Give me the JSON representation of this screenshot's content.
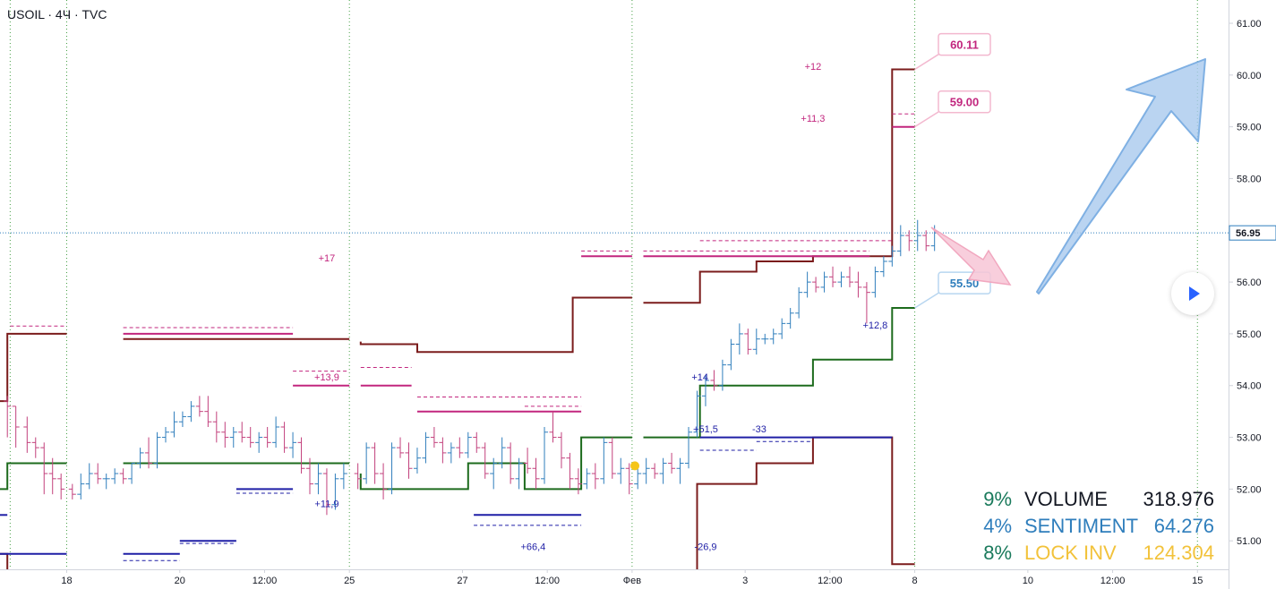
{
  "header": {
    "title": "USOIL · 4Ч · TVC"
  },
  "colors": {
    "bull": "#2f7ebc",
    "bear": "#c2407c",
    "maroon": "#7b1c1c",
    "green": "#1d6b1d",
    "navy": "#1f1fa6",
    "pink": "#c2267e",
    "grid": "#46a046",
    "axis": "#131722"
  },
  "chart_data": {
    "type": "ohlc",
    "y_ticks": [
      "51.00",
      "52.00",
      "53.00",
      "54.00",
      "55.00",
      "56.00",
      "57.00",
      "58.00",
      "59.00",
      "60.00",
      "61.00"
    ],
    "ylim": [
      50.45,
      61.45
    ],
    "x_ticks": [
      {
        "label": "18",
        "t": 1
      },
      {
        "label": "20",
        "t": 3
      },
      {
        "label": "12:00",
        "t": 4.5
      },
      {
        "label": "25",
        "t": 6
      },
      {
        "label": "27",
        "t": 8
      },
      {
        "label": "12:00",
        "t": 9.5
      },
      {
        "label": "Фев",
        "t": 11
      },
      {
        "label": "3",
        "t": 13
      },
      {
        "label": "12:00",
        "t": 14.5
      },
      {
        "label": "8",
        "t": 16
      },
      {
        "label": "10",
        "t": 18
      },
      {
        "label": "12:00",
        "t": 19.5
      },
      {
        "label": "15",
        "t": 21
      }
    ],
    "xlim": [
      -0.18,
      21.55
    ],
    "session_lines": [
      0,
      1,
      6,
      11,
      16,
      21
    ],
    "last_price": {
      "value": 56.95,
      "label": "56.95"
    },
    "candles": [
      [
        -0.05,
        53.7,
        53.8,
        53.0,
        53.6
      ],
      [
        0.1,
        53.6,
        53.6,
        52.8,
        53.2
      ],
      [
        0.3,
        53.2,
        53.4,
        52.7,
        52.9
      ],
      [
        0.45,
        52.9,
        53.0,
        52.6,
        52.8
      ],
      [
        0.6,
        52.8,
        52.9,
        51.9,
        52.3
      ],
      [
        0.75,
        52.3,
        52.6,
        51.9,
        52.2
      ],
      [
        0.9,
        52.2,
        52.3,
        51.8,
        52.0
      ],
      [
        1.1,
        52.0,
        52.1,
        51.8,
        51.9
      ],
      [
        1.25,
        51.9,
        52.3,
        51.8,
        52.1
      ],
      [
        1.4,
        52.1,
        52.5,
        52.0,
        52.3
      ],
      [
        1.55,
        52.3,
        52.5,
        52.1,
        52.2
      ],
      [
        1.7,
        52.2,
        52.3,
        52.0,
        52.2
      ],
      [
        1.85,
        52.2,
        52.4,
        52.1,
        52.3
      ],
      [
        2.0,
        52.3,
        52.4,
        52.1,
        52.2
      ],
      [
        2.15,
        52.2,
        52.5,
        52.1,
        52.5
      ],
      [
        2.3,
        52.5,
        52.8,
        52.4,
        52.7
      ],
      [
        2.45,
        52.7,
        53.0,
        52.4,
        52.5
      ],
      [
        2.6,
        52.5,
        53.1,
        52.4,
        53.0
      ],
      [
        2.75,
        53.0,
        53.2,
        52.9,
        53.1
      ],
      [
        2.9,
        53.1,
        53.5,
        53.0,
        53.3
      ],
      [
        3.05,
        53.3,
        53.5,
        53.2,
        53.4
      ],
      [
        3.2,
        53.4,
        53.7,
        53.3,
        53.6
      ],
      [
        3.35,
        53.6,
        53.8,
        53.4,
        53.5
      ],
      [
        3.5,
        53.5,
        53.8,
        53.2,
        53.3
      ],
      [
        3.65,
        53.3,
        53.5,
        52.9,
        53.1
      ],
      [
        3.8,
        53.1,
        53.3,
        52.8,
        53.0
      ],
      [
        3.95,
        53.0,
        53.2,
        52.8,
        53.1
      ],
      [
        4.1,
        53.1,
        53.3,
        52.9,
        53.0
      ],
      [
        4.25,
        53.0,
        53.2,
        52.8,
        52.9
      ],
      [
        4.4,
        52.9,
        53.1,
        52.7,
        53.0
      ],
      [
        4.55,
        53.0,
        53.2,
        52.8,
        52.9
      ],
      [
        4.7,
        52.9,
        53.4,
        52.8,
        53.2
      ],
      [
        4.85,
        53.2,
        53.3,
        52.7,
        52.8
      ],
      [
        5.0,
        52.8,
        53.1,
        52.6,
        52.9
      ],
      [
        5.15,
        52.9,
        53.0,
        52.3,
        52.4
      ],
      [
        5.3,
        52.4,
        52.6,
        51.9,
        52.1
      ],
      [
        5.45,
        52.1,
        52.5,
        51.9,
        52.3
      ],
      [
        5.6,
        52.3,
        52.4,
        51.5,
        51.7
      ],
      [
        5.75,
        51.7,
        52.3,
        51.6,
        52.2
      ],
      [
        5.9,
        52.2,
        52.5,
        52.0,
        52.3
      ],
      [
        6.15,
        52.3,
        52.5,
        52.0,
        52.2
      ],
      [
        6.3,
        52.2,
        52.9,
        52.1,
        52.8
      ],
      [
        6.45,
        52.8,
        52.9,
        52.1,
        52.3
      ],
      [
        6.6,
        52.3,
        52.5,
        51.8,
        52.0
      ],
      [
        6.75,
        52.0,
        52.9,
        51.9,
        52.8
      ],
      [
        6.9,
        52.8,
        53.0,
        52.6,
        52.7
      ],
      [
        7.05,
        52.7,
        52.9,
        52.2,
        52.4
      ],
      [
        7.2,
        52.4,
        52.8,
        52.3,
        52.6
      ],
      [
        7.35,
        52.6,
        53.1,
        52.5,
        53.0
      ],
      [
        7.5,
        53.0,
        53.2,
        52.8,
        52.9
      ],
      [
        7.65,
        52.9,
        53.0,
        52.5,
        52.7
      ],
      [
        7.8,
        52.7,
        52.9,
        52.5,
        52.8
      ],
      [
        7.95,
        52.8,
        53.0,
        52.6,
        52.7
      ],
      [
        8.1,
        52.7,
        53.1,
        52.6,
        53.0
      ],
      [
        8.25,
        53.0,
        53.1,
        52.7,
        52.8
      ],
      [
        8.4,
        52.8,
        52.9,
        52.2,
        52.3
      ],
      [
        8.55,
        52.3,
        52.6,
        52.0,
        52.5
      ],
      [
        8.7,
        52.5,
        53.0,
        52.4,
        52.8
      ],
      [
        8.85,
        52.8,
        52.9,
        52.1,
        52.2
      ],
      [
        9.0,
        52.2,
        52.6,
        52.0,
        52.5
      ],
      [
        9.15,
        52.5,
        52.8,
        52.3,
        52.4
      ],
      [
        9.3,
        52.4,
        52.6,
        52.0,
        52.2
      ],
      [
        9.45,
        52.2,
        53.2,
        52.1,
        53.1
      ],
      [
        9.6,
        53.1,
        53.5,
        52.9,
        53.0
      ],
      [
        9.75,
        53.0,
        53.1,
        52.4,
        52.6
      ],
      [
        9.9,
        52.6,
        52.7,
        52.0,
        52.2
      ],
      [
        10.05,
        52.2,
        52.4,
        51.9,
        52.1
      ],
      [
        10.2,
        52.1,
        52.4,
        52.0,
        52.3
      ],
      [
        10.35,
        52.3,
        52.5,
        52.0,
        52.2
      ],
      [
        10.5,
        52.2,
        53.0,
        52.1,
        52.9
      ],
      [
        10.65,
        52.9,
        53.0,
        52.2,
        52.3
      ],
      [
        10.8,
        52.3,
        52.6,
        52.1,
        52.4
      ],
      [
        10.95,
        52.4,
        52.5,
        51.9,
        52.1
      ],
      [
        11.1,
        52.1,
        52.4,
        52.0,
        52.3
      ],
      [
        11.25,
        52.3,
        52.6,
        52.1,
        52.4
      ],
      [
        11.4,
        52.4,
        52.5,
        52.2,
        52.3
      ],
      [
        11.55,
        52.3,
        52.6,
        52.1,
        52.5
      ],
      [
        11.7,
        52.5,
        52.7,
        52.3,
        52.4
      ],
      [
        11.85,
        52.4,
        52.6,
        52.1,
        52.5
      ],
      [
        12.0,
        52.5,
        53.2,
        52.4,
        53.1
      ],
      [
        12.15,
        53.1,
        53.9,
        53.0,
        53.8
      ],
      [
        12.3,
        53.8,
        54.2,
        53.6,
        54.1
      ],
      [
        12.45,
        54.1,
        54.3,
        53.9,
        54.0
      ],
      [
        12.6,
        54.0,
        54.5,
        53.9,
        54.4
      ],
      [
        12.75,
        54.4,
        54.9,
        54.3,
        54.8
      ],
      [
        12.9,
        54.8,
        55.2,
        54.6,
        55.0
      ],
      [
        13.05,
        55.0,
        55.1,
        54.6,
        54.7
      ],
      [
        13.2,
        54.7,
        55.1,
        54.6,
        54.9
      ],
      [
        13.35,
        54.9,
        55.0,
        54.8,
        54.9
      ],
      [
        13.5,
        54.9,
        55.1,
        54.8,
        55.0
      ],
      [
        13.65,
        55.0,
        55.3,
        54.9,
        55.2
      ],
      [
        13.8,
        55.2,
        55.5,
        55.1,
        55.4
      ],
      [
        13.95,
        55.4,
        55.9,
        55.3,
        55.8
      ],
      [
        14.1,
        55.8,
        56.2,
        55.7,
        56.0
      ],
      [
        14.25,
        56.0,
        56.1,
        55.8,
        55.9
      ],
      [
        14.4,
        55.9,
        56.2,
        55.8,
        56.1
      ],
      [
        14.55,
        56.1,
        56.3,
        55.9,
        56.0
      ],
      [
        14.7,
        56.0,
        56.2,
        55.9,
        56.1
      ],
      [
        14.85,
        56.1,
        56.3,
        55.9,
        56.0
      ],
      [
        15.0,
        56.0,
        56.2,
        55.7,
        55.9
      ],
      [
        15.15,
        55.9,
        56.0,
        55.2,
        55.8
      ],
      [
        15.3,
        55.8,
        56.3,
        55.7,
        56.2
      ],
      [
        15.45,
        56.2,
        56.5,
        56.1,
        56.4
      ],
      [
        15.6,
        56.4,
        56.7,
        56.3,
        56.6
      ],
      [
        15.75,
        56.6,
        57.1,
        56.5,
        56.9
      ],
      [
        15.9,
        56.9,
        57.0,
        56.6,
        56.8
      ],
      [
        16.05,
        56.8,
        57.2,
        56.6,
        56.9
      ],
      [
        16.2,
        56.9,
        57.0,
        56.6,
        56.7
      ],
      [
        16.35,
        56.7,
        57.1,
        56.6,
        56.95
      ]
    ],
    "annotations": [
      {
        "text": "+17",
        "t": 5.6,
        "y": 56.4,
        "color": "pink"
      },
      {
        "text": "+13,9",
        "t": 5.6,
        "y": 54.1,
        "color": "pink"
      },
      {
        "text": "+11,9",
        "t": 5.6,
        "y": 51.65,
        "color": "navy"
      },
      {
        "text": "+66,4",
        "t": 9.25,
        "y": 50.82,
        "color": "navy"
      },
      {
        "text": "+14",
        "t": 12.2,
        "y": 54.1,
        "color": "navy"
      },
      {
        "text": "+51,5",
        "t": 12.3,
        "y": 53.1,
        "color": "navy"
      },
      {
        "text": "-33",
        "t": 13.25,
        "y": 53.1,
        "color": "navy"
      },
      {
        "text": "-26,9",
        "t": 12.3,
        "y": 50.82,
        "color": "navy"
      },
      {
        "text": "+12",
        "t": 14.2,
        "y": 60.1,
        "color": "pink"
      },
      {
        "text": "+11,3",
        "t": 14.2,
        "y": 59.1,
        "color": "pink"
      },
      {
        "text": "+12,8",
        "t": 15.3,
        "y": 55.1,
        "color": "navy"
      }
    ],
    "level_labels": [
      {
        "text": "60.11",
        "y": 60.61,
        "color": "#c2267e",
        "border": "#f3b8cf"
      },
      {
        "text": "59.00",
        "y": 59.5,
        "color": "#c2267e",
        "border": "#f3b8cf"
      },
      {
        "text": "55.50",
        "y": 56.0,
        "color": "#2f7ebc",
        "border": "#b8d6f0"
      }
    ],
    "stats": [
      {
        "pct": "9%",
        "label": "VOLUME",
        "value": "318.976",
        "pct_color": "#1a7a5c",
        "label_color": "#131722",
        "value_color": "#131722"
      },
      {
        "pct": "4%",
        "label": "SENTIMENT",
        "value": "64.276",
        "pct_color": "#2f7ebc",
        "label_color": "#2f7ebc",
        "value_color": "#2f7ebc"
      },
      {
        "pct": "8%",
        "label": "LOCK INV",
        "value": "124.304",
        "pct_color": "#1a7a5c",
        "label_color": "#f2c23a",
        "value_color": "#f2c23a"
      }
    ]
  }
}
